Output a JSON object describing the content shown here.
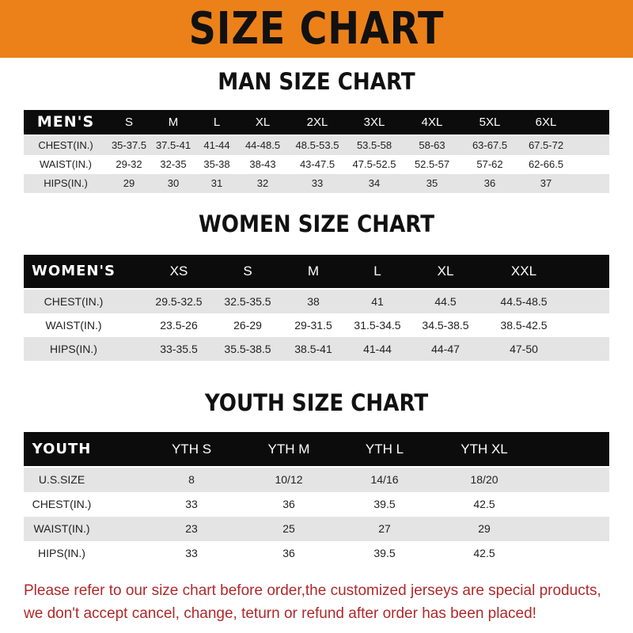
{
  "title": "SIZE CHART",
  "men": {
    "title": "MAN SIZE CHART",
    "header": [
      "MEN'S",
      "S",
      "M",
      "L",
      "XL",
      "2XL",
      "3XL",
      "4XL",
      "5XL",
      "6XL"
    ],
    "rows": [
      [
        "CHEST(IN.)",
        "35-37.5",
        "37.5-41",
        "41-44",
        "44-48.5",
        "48.5-53.5",
        "53.5-58",
        "58-63",
        "63-67.5",
        "67.5-72"
      ],
      [
        "WAIST(IN.)",
        "29-32",
        "32-35",
        "35-38",
        "38-43",
        "43-47.5",
        "47.5-52.5",
        "52.5-57",
        "57-62",
        "62-66.5"
      ],
      [
        "HIPS(IN.)",
        "29",
        "30",
        "31",
        "32",
        "33",
        "34",
        "35",
        "36",
        "37"
      ]
    ]
  },
  "women": {
    "title": "WOMEN SIZE CHART",
    "header": [
      "WOMEN'S",
      "XS",
      "S",
      "M",
      "L",
      "XL",
      "XXL"
    ],
    "rows": [
      [
        "CHEST(IN.)",
        "29.5-32.5",
        "32.5-35.5",
        "38",
        "41",
        "44.5",
        "44.5-48.5"
      ],
      [
        "WAIST(IN.)",
        "23.5-26",
        "26-29",
        "29-31.5",
        "31.5-34.5",
        "34.5-38.5",
        "38.5-42.5"
      ],
      [
        "HIPS(IN.)",
        "33-35.5",
        "35.5-38.5",
        "38.5-41",
        "41-44",
        "44-47",
        "47-50"
      ]
    ]
  },
  "youth": {
    "title": "YOUTH SIZE CHART",
    "header": [
      "YOUTH",
      "YTH S",
      "YTH M",
      "YTH L",
      "YTH XL"
    ],
    "rows": [
      [
        "U.S.SIZE",
        "8",
        "10/12",
        "14/16",
        "18/20"
      ],
      [
        "CHEST(IN.)",
        "33",
        "36",
        "39.5",
        "42.5"
      ],
      [
        "WAIST(IN.)",
        "23",
        "25",
        "27",
        "29"
      ],
      [
        "HIPS(IN.)",
        "33",
        "36",
        "39.5",
        "42.5"
      ]
    ]
  },
  "notice": [
    "Please refer to our size chart before order,the customized jerseys are special products,",
    "we don't accept cancel, change, teturn or refund after order has been placed!"
  ],
  "colors": {
    "banner": "#ec8119",
    "header_row": "#0c0c0c",
    "notice": "#b0282a"
  }
}
